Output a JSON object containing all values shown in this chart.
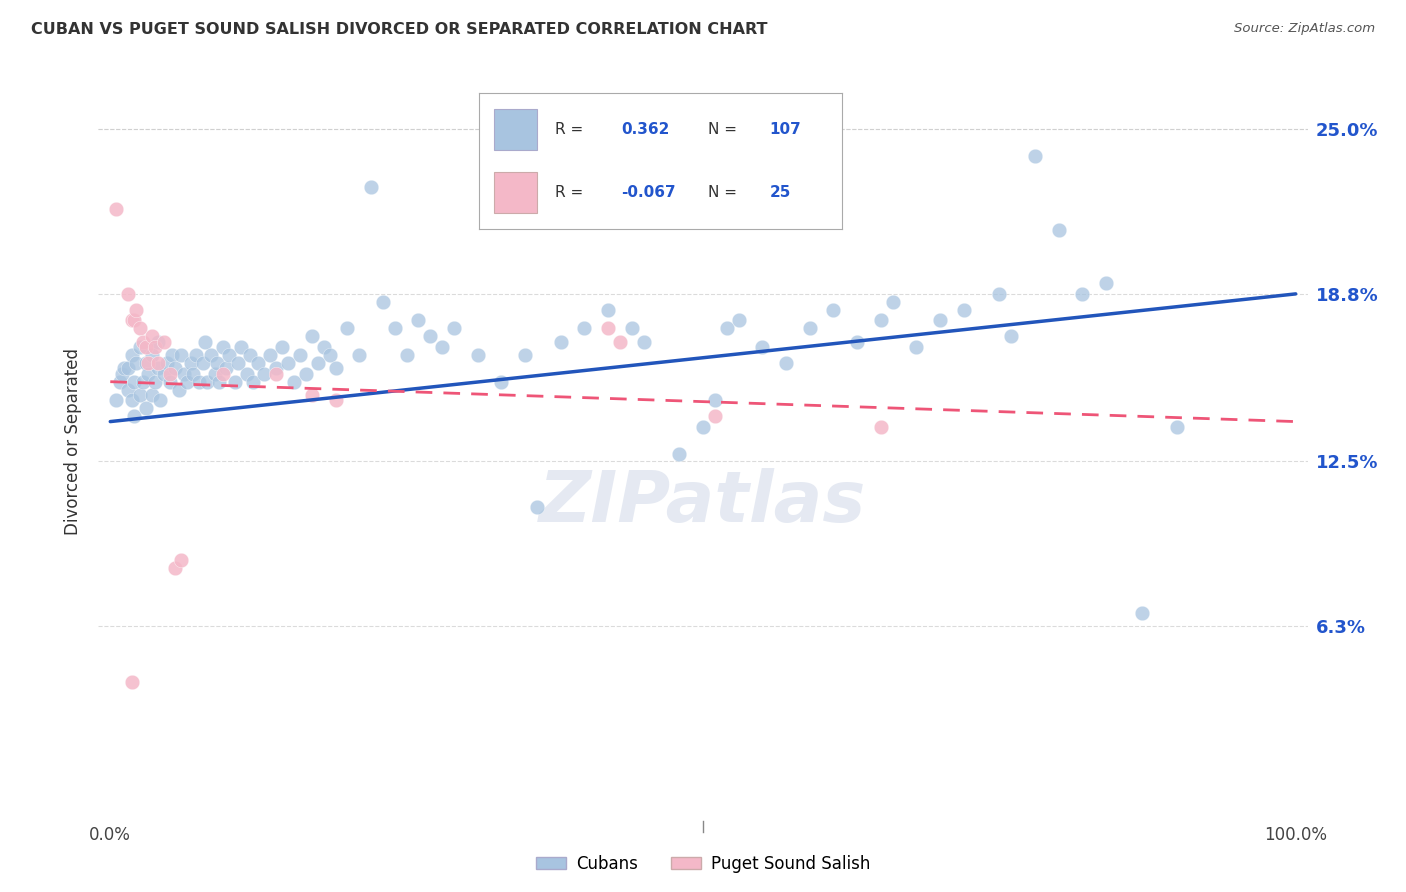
{
  "title": "CUBAN VS PUGET SOUND SALISH DIVORCED OR SEPARATED CORRELATION CHART",
  "source": "Source: ZipAtlas.com",
  "ylabel": "Divorced or Separated",
  "ytick_labels": [
    "6.3%",
    "12.5%",
    "18.8%",
    "25.0%"
  ],
  "ytick_values": [
    0.063,
    0.125,
    0.188,
    0.25
  ],
  "xlim": [
    -0.01,
    1.01
  ],
  "ylim": [
    -0.01,
    0.275
  ],
  "r_cuban": 0.362,
  "n_cuban": 107,
  "r_salish": -0.067,
  "n_salish": 25,
  "blue_color": "#a8c4e0",
  "pink_color": "#f4b8c8",
  "blue_line_color": "#2255bb",
  "pink_line_color": "#ee5577",
  "watermark": "ZIPatlas",
  "background_color": "#ffffff",
  "grid_color": "#cccccc",
  "blue_trend": [
    0.0,
    0.14,
    1.0,
    0.188
  ],
  "pink_trend": [
    0.0,
    0.155,
    1.0,
    0.14
  ],
  "blue_scatter": [
    [
      0.005,
      0.148
    ],
    [
      0.008,
      0.155
    ],
    [
      0.01,
      0.158
    ],
    [
      0.012,
      0.16
    ],
    [
      0.015,
      0.152
    ],
    [
      0.015,
      0.16
    ],
    [
      0.018,
      0.148
    ],
    [
      0.018,
      0.165
    ],
    [
      0.02,
      0.142
    ],
    [
      0.02,
      0.155
    ],
    [
      0.022,
      0.162
    ],
    [
      0.025,
      0.15
    ],
    [
      0.025,
      0.168
    ],
    [
      0.028,
      0.155
    ],
    [
      0.03,
      0.145
    ],
    [
      0.03,
      0.162
    ],
    [
      0.032,
      0.158
    ],
    [
      0.035,
      0.15
    ],
    [
      0.035,
      0.165
    ],
    [
      0.038,
      0.155
    ],
    [
      0.04,
      0.16
    ],
    [
      0.04,
      0.17
    ],
    [
      0.042,
      0.148
    ],
    [
      0.045,
      0.158
    ],
    [
      0.048,
      0.162
    ],
    [
      0.05,
      0.155
    ],
    [
      0.052,
      0.165
    ],
    [
      0.055,
      0.16
    ],
    [
      0.058,
      0.152
    ],
    [
      0.06,
      0.165
    ],
    [
      0.062,
      0.158
    ],
    [
      0.065,
      0.155
    ],
    [
      0.068,
      0.162
    ],
    [
      0.07,
      0.158
    ],
    [
      0.072,
      0.165
    ],
    [
      0.075,
      0.155
    ],
    [
      0.078,
      0.162
    ],
    [
      0.08,
      0.17
    ],
    [
      0.082,
      0.155
    ],
    [
      0.085,
      0.165
    ],
    [
      0.088,
      0.158
    ],
    [
      0.09,
      0.162
    ],
    [
      0.092,
      0.155
    ],
    [
      0.095,
      0.168
    ],
    [
      0.098,
      0.16
    ],
    [
      0.1,
      0.165
    ],
    [
      0.105,
      0.155
    ],
    [
      0.108,
      0.162
    ],
    [
      0.11,
      0.168
    ],
    [
      0.115,
      0.158
    ],
    [
      0.118,
      0.165
    ],
    [
      0.12,
      0.155
    ],
    [
      0.125,
      0.162
    ],
    [
      0.13,
      0.158
    ],
    [
      0.135,
      0.165
    ],
    [
      0.14,
      0.16
    ],
    [
      0.145,
      0.168
    ],
    [
      0.15,
      0.162
    ],
    [
      0.155,
      0.155
    ],
    [
      0.16,
      0.165
    ],
    [
      0.165,
      0.158
    ],
    [
      0.17,
      0.172
    ],
    [
      0.175,
      0.162
    ],
    [
      0.18,
      0.168
    ],
    [
      0.185,
      0.165
    ],
    [
      0.19,
      0.16
    ],
    [
      0.2,
      0.175
    ],
    [
      0.21,
      0.165
    ],
    [
      0.22,
      0.228
    ],
    [
      0.23,
      0.185
    ],
    [
      0.24,
      0.175
    ],
    [
      0.25,
      0.165
    ],
    [
      0.26,
      0.178
    ],
    [
      0.27,
      0.172
    ],
    [
      0.28,
      0.168
    ],
    [
      0.29,
      0.175
    ],
    [
      0.31,
      0.165
    ],
    [
      0.33,
      0.155
    ],
    [
      0.35,
      0.165
    ],
    [
      0.36,
      0.108
    ],
    [
      0.38,
      0.17
    ],
    [
      0.4,
      0.175
    ],
    [
      0.42,
      0.182
    ],
    [
      0.44,
      0.175
    ],
    [
      0.45,
      0.17
    ],
    [
      0.48,
      0.128
    ],
    [
      0.5,
      0.138
    ],
    [
      0.51,
      0.148
    ],
    [
      0.52,
      0.175
    ],
    [
      0.53,
      0.178
    ],
    [
      0.55,
      0.168
    ],
    [
      0.57,
      0.162
    ],
    [
      0.59,
      0.175
    ],
    [
      0.61,
      0.182
    ],
    [
      0.63,
      0.17
    ],
    [
      0.65,
      0.178
    ],
    [
      0.66,
      0.185
    ],
    [
      0.68,
      0.168
    ],
    [
      0.7,
      0.178
    ],
    [
      0.72,
      0.182
    ],
    [
      0.75,
      0.188
    ],
    [
      0.76,
      0.172
    ],
    [
      0.78,
      0.24
    ],
    [
      0.8,
      0.212
    ],
    [
      0.82,
      0.188
    ],
    [
      0.84,
      0.192
    ],
    [
      0.87,
      0.068
    ],
    [
      0.9,
      0.138
    ]
  ],
  "pink_scatter": [
    [
      0.005,
      0.22
    ],
    [
      0.015,
      0.188
    ],
    [
      0.018,
      0.178
    ],
    [
      0.02,
      0.178
    ],
    [
      0.022,
      0.182
    ],
    [
      0.025,
      0.175
    ],
    [
      0.028,
      0.17
    ],
    [
      0.03,
      0.168
    ],
    [
      0.032,
      0.162
    ],
    [
      0.035,
      0.172
    ],
    [
      0.038,
      0.168
    ],
    [
      0.04,
      0.162
    ],
    [
      0.045,
      0.17
    ],
    [
      0.05,
      0.158
    ],
    [
      0.055,
      0.085
    ],
    [
      0.06,
      0.088
    ],
    [
      0.095,
      0.158
    ],
    [
      0.14,
      0.158
    ],
    [
      0.17,
      0.15
    ],
    [
      0.19,
      0.148
    ],
    [
      0.42,
      0.175
    ],
    [
      0.43,
      0.17
    ],
    [
      0.51,
      0.142
    ],
    [
      0.65,
      0.138
    ],
    [
      0.018,
      0.042
    ]
  ]
}
